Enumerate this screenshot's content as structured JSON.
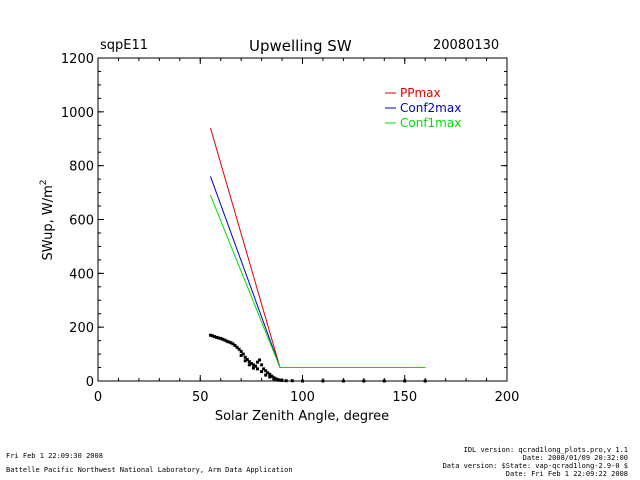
{
  "header": {
    "site": "sqpE11",
    "title": "Upwelling SW",
    "date": "20080130"
  },
  "footer": {
    "left_line1": "Fri Feb  1 22:09:30 2008",
    "left_line2": "Battelle Pacific Northwest National Laboratory, Arm Data Application",
    "right_line1": "IDL version: qcrad1long_plots.pro,v 1.1",
    "right_line2": "Date: 2008/01/09 20:32:00",
    "right_line3": "Data version: $State: vap-qcrad1long-2.9-0 $",
    "right_line4": "Date: Fri Feb  1 22:09:22 2008"
  },
  "chart_data": {
    "type": "line",
    "title": "Upwelling SW",
    "xlabel": "Solar Zenith Angle, degree",
    "ylabel": "SWup, W/m",
    "ylabel_superscript": "2",
    "xlim": [
      0,
      200
    ],
    "ylim": [
      0,
      1200
    ],
    "xticks": [
      "0",
      "50",
      "100",
      "150",
      "200"
    ],
    "yticks": [
      "0",
      "200",
      "400",
      "600",
      "800",
      "1000",
      "1200"
    ],
    "grid": false,
    "legend_position": "top-right",
    "series": [
      {
        "name": "PPmax",
        "color": "#dd0000",
        "x": [
          55,
          89,
          160
        ],
        "y": [
          940,
          50,
          50
        ]
      },
      {
        "name": "Conf2max",
        "color": "#0000cc",
        "x": [
          55,
          89,
          160
        ],
        "y": [
          760,
          50,
          50
        ]
      },
      {
        "name": "Conf1max",
        "color": "#00dd00",
        "x": [
          55,
          89,
          160
        ],
        "y": [
          690,
          50,
          50
        ]
      }
    ],
    "observations": {
      "color": "#000000",
      "points": [
        [
          55,
          170
        ],
        [
          56,
          168
        ],
        [
          57,
          165
        ],
        [
          58,
          162
        ],
        [
          59,
          160
        ],
        [
          60,
          158
        ],
        [
          61,
          155
        ],
        [
          62,
          152
        ],
        [
          63,
          148
        ],
        [
          64,
          145
        ],
        [
          65,
          142
        ],
        [
          66,
          138
        ],
        [
          67,
          132
        ],
        [
          68,
          125
        ],
        [
          69,
          118
        ],
        [
          70,
          110
        ],
        [
          71,
          100
        ],
        [
          72,
          88
        ],
        [
          73,
          80
        ],
        [
          74,
          72
        ],
        [
          75,
          65
        ],
        [
          76,
          60
        ],
        [
          77,
          55
        ],
        [
          78,
          70
        ],
        [
          79,
          78
        ],
        [
          80,
          60
        ],
        [
          81,
          45
        ],
        [
          82,
          38
        ],
        [
          83,
          30
        ],
        [
          84,
          25
        ],
        [
          85,
          18
        ],
        [
          86,
          12
        ],
        [
          87,
          8
        ],
        [
          88,
          5
        ],
        [
          89,
          3
        ],
        [
          90,
          2
        ],
        [
          92,
          1
        ],
        [
          95,
          1
        ],
        [
          100,
          0
        ],
        [
          110,
          0
        ],
        [
          120,
          0
        ],
        [
          130,
          0
        ],
        [
          140,
          0
        ],
        [
          150,
          0
        ],
        [
          160,
          0
        ],
        [
          70,
          95
        ],
        [
          72,
          75
        ],
        [
          74,
          60
        ],
        [
          76,
          48
        ],
        [
          78,
          45
        ],
        [
          80,
          35
        ],
        [
          82,
          22
        ],
        [
          84,
          15
        ],
        [
          86,
          8
        ],
        [
          88,
          3
        ]
      ]
    }
  }
}
